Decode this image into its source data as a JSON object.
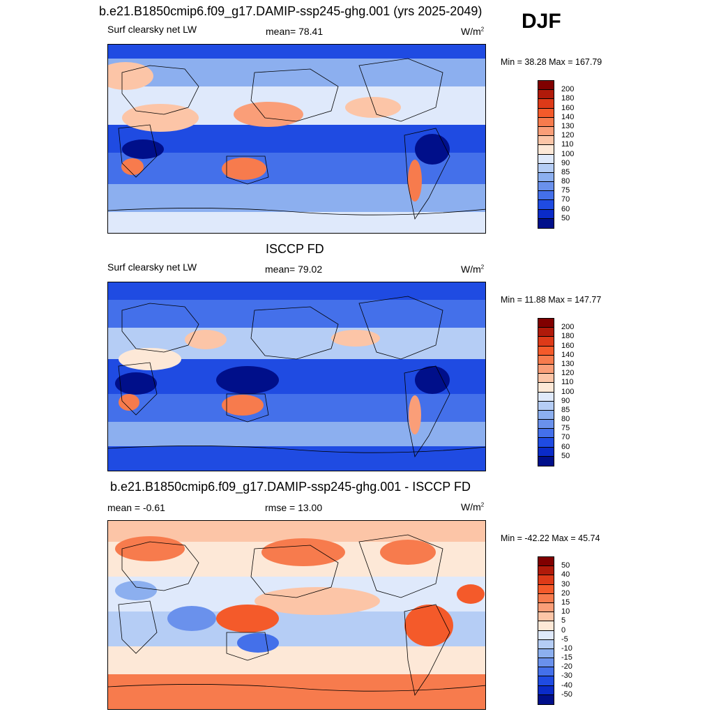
{
  "season": "DJF",
  "panels": [
    {
      "title": "b.e21.B1850cmip6.f09_g17.DAMIP-ssp245-ghg.001 (yrs 2025-2049)",
      "left": "Surf clearsky net LW",
      "center": "mean=  78.41",
      "units": "W/m",
      "units_sup": "2",
      "minmax": "Min =  38.28 Max = 167.79",
      "map_kind": "model"
    },
    {
      "title": "ISCCP FD",
      "left": "Surf clearsky net LW",
      "center": "mean=  79.02",
      "units": "W/m",
      "units_sup": "2",
      "minmax": "Min =  11.88 Max = 147.77",
      "map_kind": "obs"
    },
    {
      "title": "b.e21.B1850cmip6.f09_g17.DAMIP-ssp245-ghg.001 - ISCCP FD",
      "left": "mean =  -0.61",
      "center": "rmse =  13.00",
      "units": "W/m",
      "units_sup": "2",
      "minmax": "Min = -42.22 Max =  45.74",
      "map_kind": "diff"
    }
  ],
  "colorbars": {
    "absolute": {
      "labels": [
        "200",
        "180",
        "160",
        "140",
        "130",
        "120",
        "110",
        "100",
        "90",
        "85",
        "80",
        "75",
        "70",
        "60",
        "50"
      ],
      "colors": [
        "#800000",
        "#b01a0a",
        "#dd3a18",
        "#f45a2a",
        "#f77b4d",
        "#fa9e78",
        "#fcc5a7",
        "#fde8d7",
        "#dfe9fb",
        "#b5cdf5",
        "#8cafef",
        "#6a91ec",
        "#4470ea",
        "#1f4be2",
        "#0a2bc8",
        "#000f8a"
      ]
    },
    "difference": {
      "labels": [
        "50",
        "40",
        "30",
        "20",
        "15",
        "10",
        "5",
        "0",
        "-5",
        "-10",
        "-15",
        "-20",
        "-30",
        "-40",
        "-50"
      ],
      "colors": [
        "#800000",
        "#b01a0a",
        "#dd3a18",
        "#f45a2a",
        "#f77b4d",
        "#fa9e78",
        "#fcc5a7",
        "#fde8d7",
        "#dfe9fb",
        "#b5cdf5",
        "#8cafef",
        "#6a91ec",
        "#4470ea",
        "#1f4be2",
        "#0a2bc8",
        "#000f8a"
      ]
    }
  }
}
